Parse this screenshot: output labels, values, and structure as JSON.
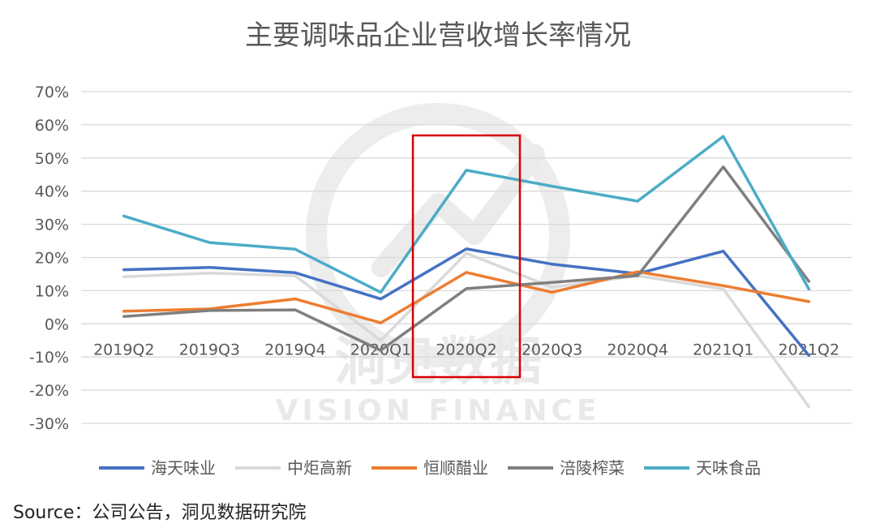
{
  "chart_data": {
    "type": "line",
    "title": "主要调味品企业营收增长率情况",
    "categories": [
      "2019Q2",
      "2019Q3",
      "2019Q4",
      "2020Q1",
      "2020Q2",
      "2020Q3",
      "2020Q4",
      "2021Q1",
      "2021Q2"
    ],
    "y_ticks": [
      "70%",
      "60%",
      "50%",
      "40%",
      "30%",
      "20%",
      "10%",
      "0%",
      "-10%",
      "-20%",
      "-30%"
    ],
    "ylim": [
      -30,
      70
    ],
    "grid": true,
    "legend_position": "bottom",
    "series": [
      {
        "name": "海天味业",
        "color": "#4472C4",
        "values": [
          16.3,
          17.0,
          15.4,
          7.5,
          22.6,
          18.0,
          15.1,
          21.9,
          -9.5
        ]
      },
      {
        "name": "中炬高新",
        "color": "#D9D9D9",
        "values": [
          14.2,
          15.3,
          14.5,
          -5.0,
          21.3,
          11.0,
          14.5,
          10.5,
          -25.0
        ]
      },
      {
        "name": "恒顺醋业",
        "color": "#ED7D31",
        "values": [
          3.8,
          4.5,
          7.5,
          0.3,
          15.5,
          9.5,
          15.7,
          11.5,
          6.7
        ]
      },
      {
        "name": "涪陵榨菜",
        "color": "#7F7F7F",
        "values": [
          2.2,
          4.0,
          4.2,
          -8.0,
          10.6,
          12.5,
          14.5,
          47.3,
          12.8
        ]
      },
      {
        "name": "天味食品",
        "color": "#4BACC6",
        "values": [
          32.5,
          24.5,
          22.5,
          9.5,
          46.3,
          41.5,
          37.0,
          56.5,
          10.5
        ]
      }
    ],
    "highlight_category": "2020Q2",
    "highlight_color": "#D90000"
  },
  "watermark": {
    "main": "洞见数据",
    "sub": "VISION FINANCE"
  },
  "source": "Source：公司公告，洞见数据研究院"
}
